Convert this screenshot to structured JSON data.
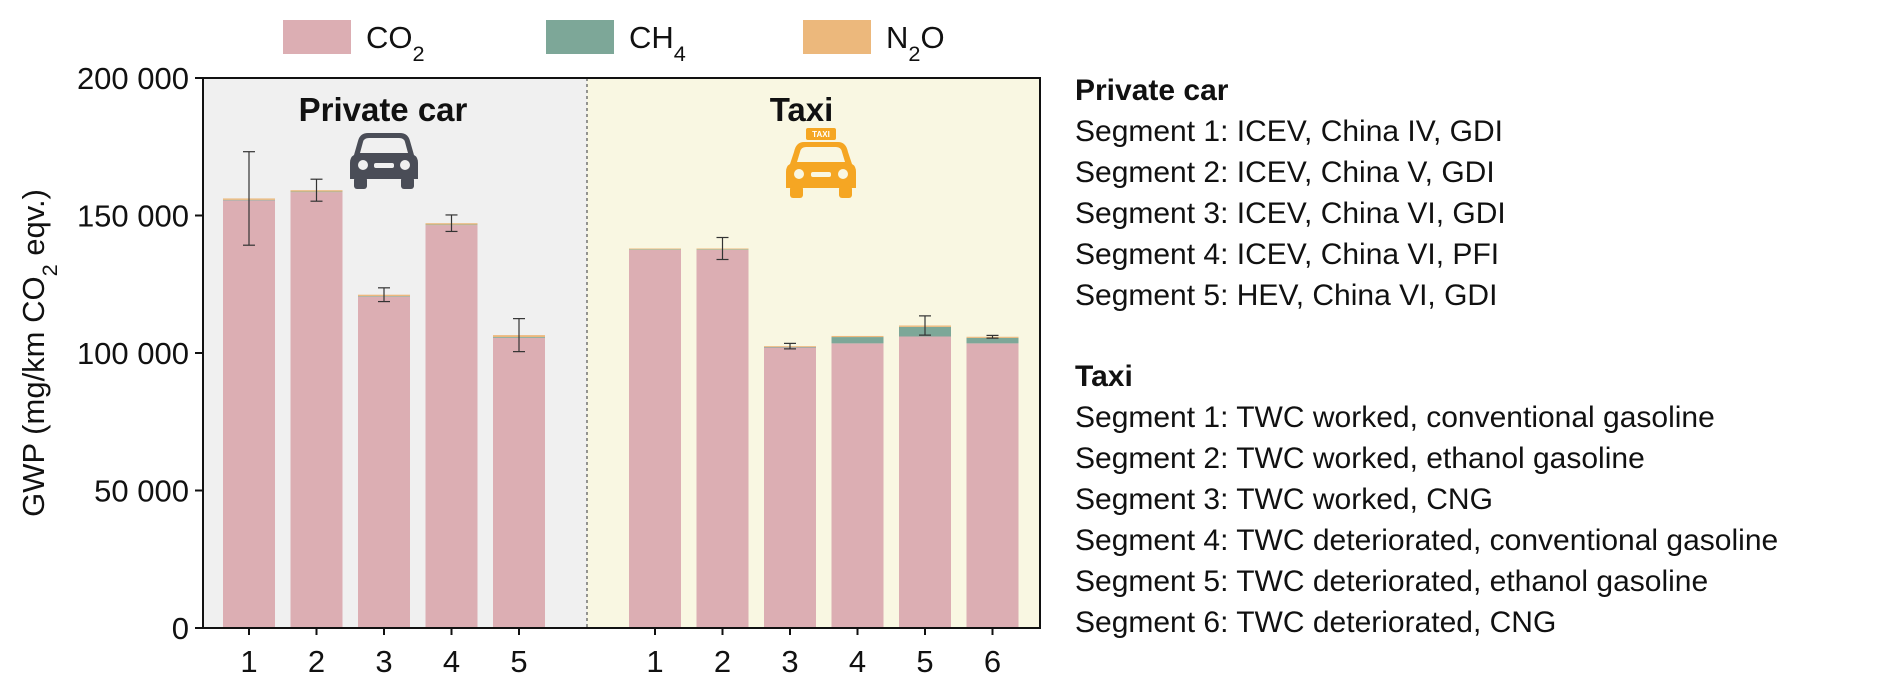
{
  "chart_data": {
    "type": "bar",
    "stacked": true,
    "ylabel_main": "GWP (mg/km CO",
    "ylabel_sub": "2",
    "ylabel_tail": " eqv.)",
    "ylim": [
      0,
      200000
    ],
    "yticks": [
      0,
      50000,
      100000,
      150000,
      200000
    ],
    "ytick_labels": [
      "0",
      "50 000",
      "100 000",
      "150 000",
      "200 000"
    ],
    "grid": false,
    "legend": {
      "placement": "top",
      "entries": [
        {
          "main": "CO",
          "sub": "2",
          "tail": "",
          "color": "#dcaeb3"
        },
        {
          "main": "CH",
          "sub": "4",
          "tail": "",
          "color": "#7da798"
        },
        {
          "main": "N",
          "sub": "2",
          "tail": "O",
          "color": "#ecb87c"
        }
      ]
    },
    "series_names": [
      "CO2",
      "CH4",
      "N2O"
    ],
    "groups": [
      {
        "title": "Private car",
        "icon": "car-icon",
        "background": "#f0f0f0",
        "categories": [
          "1",
          "2",
          "3",
          "4",
          "5"
        ],
        "co2": [
          155500,
          158500,
          120500,
          146500,
          105500
        ],
        "ch4": [
          200,
          200,
          200,
          200,
          300
        ],
        "n2o": [
          500,
          500,
          500,
          500,
          700
        ],
        "error": [
          17000,
          4000,
          2500,
          3000,
          6000
        ]
      },
      {
        "title": "Taxi",
        "icon": "taxi-icon",
        "background": "#f9f7e2",
        "categories": [
          "1",
          "2",
          "3",
          "4",
          "5",
          "6"
        ],
        "co2": [
          137500,
          137500,
          102000,
          103500,
          106000,
          103500
        ],
        "ch4": [
          200,
          200,
          200,
          2300,
          3500,
          2000
        ],
        "n2o": [
          300,
          300,
          300,
          400,
          500,
          400
        ],
        "error": [
          0,
          4000,
          1000,
          0,
          3500,
          500
        ]
      }
    ]
  },
  "legend_text": {
    "private_car": {
      "title": "Private car",
      "items": [
        "Segment 1: ICEV, China IV, GDI",
        "Segment 2: ICEV, China V, GDI",
        "Segment 3: ICEV, China VI, GDI",
        "Segment 4: ICEV, China VI, PFI",
        "Segment 5: HEV, China VI, GDI"
      ]
    },
    "taxi": {
      "title": "Taxi",
      "items": [
        "Segment 1: TWC worked, conventional gasoline",
        "Segment 2: TWC worked, ethanol gasoline",
        "Segment 3: TWC worked, CNG",
        "Segment 4: TWC deteriorated, conventional gasoline",
        "Segment 5: TWC deteriorated, ethanol gasoline",
        "Segment 6: TWC deteriorated, CNG"
      ]
    }
  }
}
